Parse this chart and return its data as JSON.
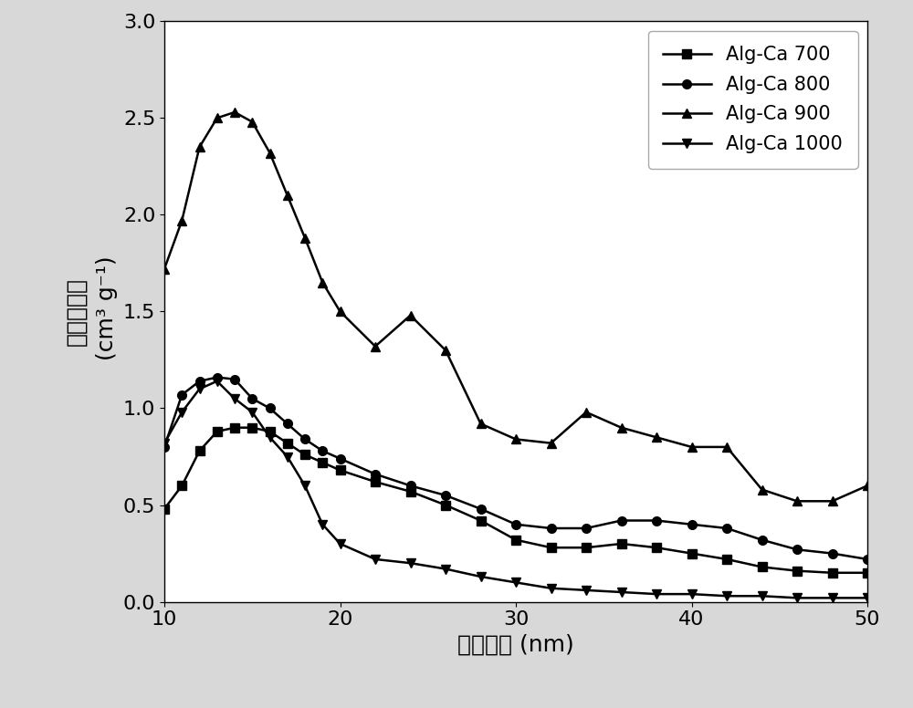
{
  "series": [
    {
      "label": "Alg-Ca 700",
      "marker": "s",
      "color": "#000000",
      "x": [
        10,
        11,
        12,
        13,
        14,
        15,
        16,
        17,
        18,
        19,
        20,
        22,
        24,
        26,
        28,
        30,
        32,
        34,
        36,
        38,
        40,
        42,
        44,
        46,
        48,
        50
      ],
      "y": [
        0.48,
        0.6,
        0.78,
        0.88,
        0.9,
        0.9,
        0.88,
        0.82,
        0.76,
        0.72,
        0.68,
        0.62,
        0.57,
        0.5,
        0.42,
        0.32,
        0.28,
        0.28,
        0.3,
        0.28,
        0.25,
        0.22,
        0.18,
        0.16,
        0.15,
        0.15
      ]
    },
    {
      "label": "Alg-Ca 800",
      "marker": "o",
      "color": "#000000",
      "x": [
        10,
        11,
        12,
        13,
        14,
        15,
        16,
        17,
        18,
        19,
        20,
        22,
        24,
        26,
        28,
        30,
        32,
        34,
        36,
        38,
        40,
        42,
        44,
        46,
        48,
        50
      ],
      "y": [
        0.8,
        1.07,
        1.14,
        1.16,
        1.15,
        1.05,
        1.0,
        0.92,
        0.84,
        0.78,
        0.74,
        0.66,
        0.6,
        0.55,
        0.48,
        0.4,
        0.38,
        0.38,
        0.42,
        0.42,
        0.4,
        0.38,
        0.32,
        0.27,
        0.25,
        0.22
      ]
    },
    {
      "label": "Alg-Ca 900",
      "marker": "^",
      "color": "#000000",
      "x": [
        10,
        11,
        12,
        13,
        14,
        15,
        16,
        17,
        18,
        19,
        20,
        22,
        24,
        26,
        28,
        30,
        32,
        34,
        36,
        38,
        40,
        42,
        44,
        46,
        48,
        50
      ],
      "y": [
        1.72,
        1.97,
        2.35,
        2.5,
        2.53,
        2.48,
        2.32,
        2.1,
        1.88,
        1.65,
        1.5,
        1.32,
        1.48,
        1.3,
        0.92,
        0.84,
        0.82,
        0.98,
        0.9,
        0.85,
        0.8,
        0.8,
        0.58,
        0.52,
        0.52,
        0.6
      ]
    },
    {
      "label": "Alg-Ca 1000",
      "marker": "v",
      "color": "#000000",
      "x": [
        10,
        11,
        12,
        13,
        14,
        15,
        16,
        17,
        18,
        19,
        20,
        22,
        24,
        26,
        28,
        30,
        32,
        34,
        36,
        38,
        40,
        42,
        44,
        46,
        48,
        50
      ],
      "y": [
        0.82,
        0.98,
        1.1,
        1.14,
        1.05,
        0.98,
        0.85,
        0.75,
        0.6,
        0.4,
        0.3,
        0.22,
        0.2,
        0.17,
        0.13,
        0.1,
        0.07,
        0.06,
        0.05,
        0.04,
        0.04,
        0.03,
        0.03,
        0.02,
        0.02,
        0.02
      ]
    }
  ],
  "xlabel": "孔径分布 (nm)",
  "ylabel_cn": "微分孔容积",
  "ylabel_unit": " (cm³ g⁻¹)",
  "xlim": [
    10,
    50
  ],
  "ylim": [
    0.0,
    3.0
  ],
  "xticks": [
    10,
    20,
    30,
    40,
    50
  ],
  "yticks": [
    0.0,
    0.5,
    1.0,
    1.5,
    2.0,
    2.5,
    3.0
  ],
  "figure_bg": "#d8d8d8",
  "plot_bg": "#ffffff",
  "label_fontsize": 18,
  "tick_fontsize": 16,
  "legend_fontsize": 15,
  "linewidth": 1.8,
  "markersize": 7
}
